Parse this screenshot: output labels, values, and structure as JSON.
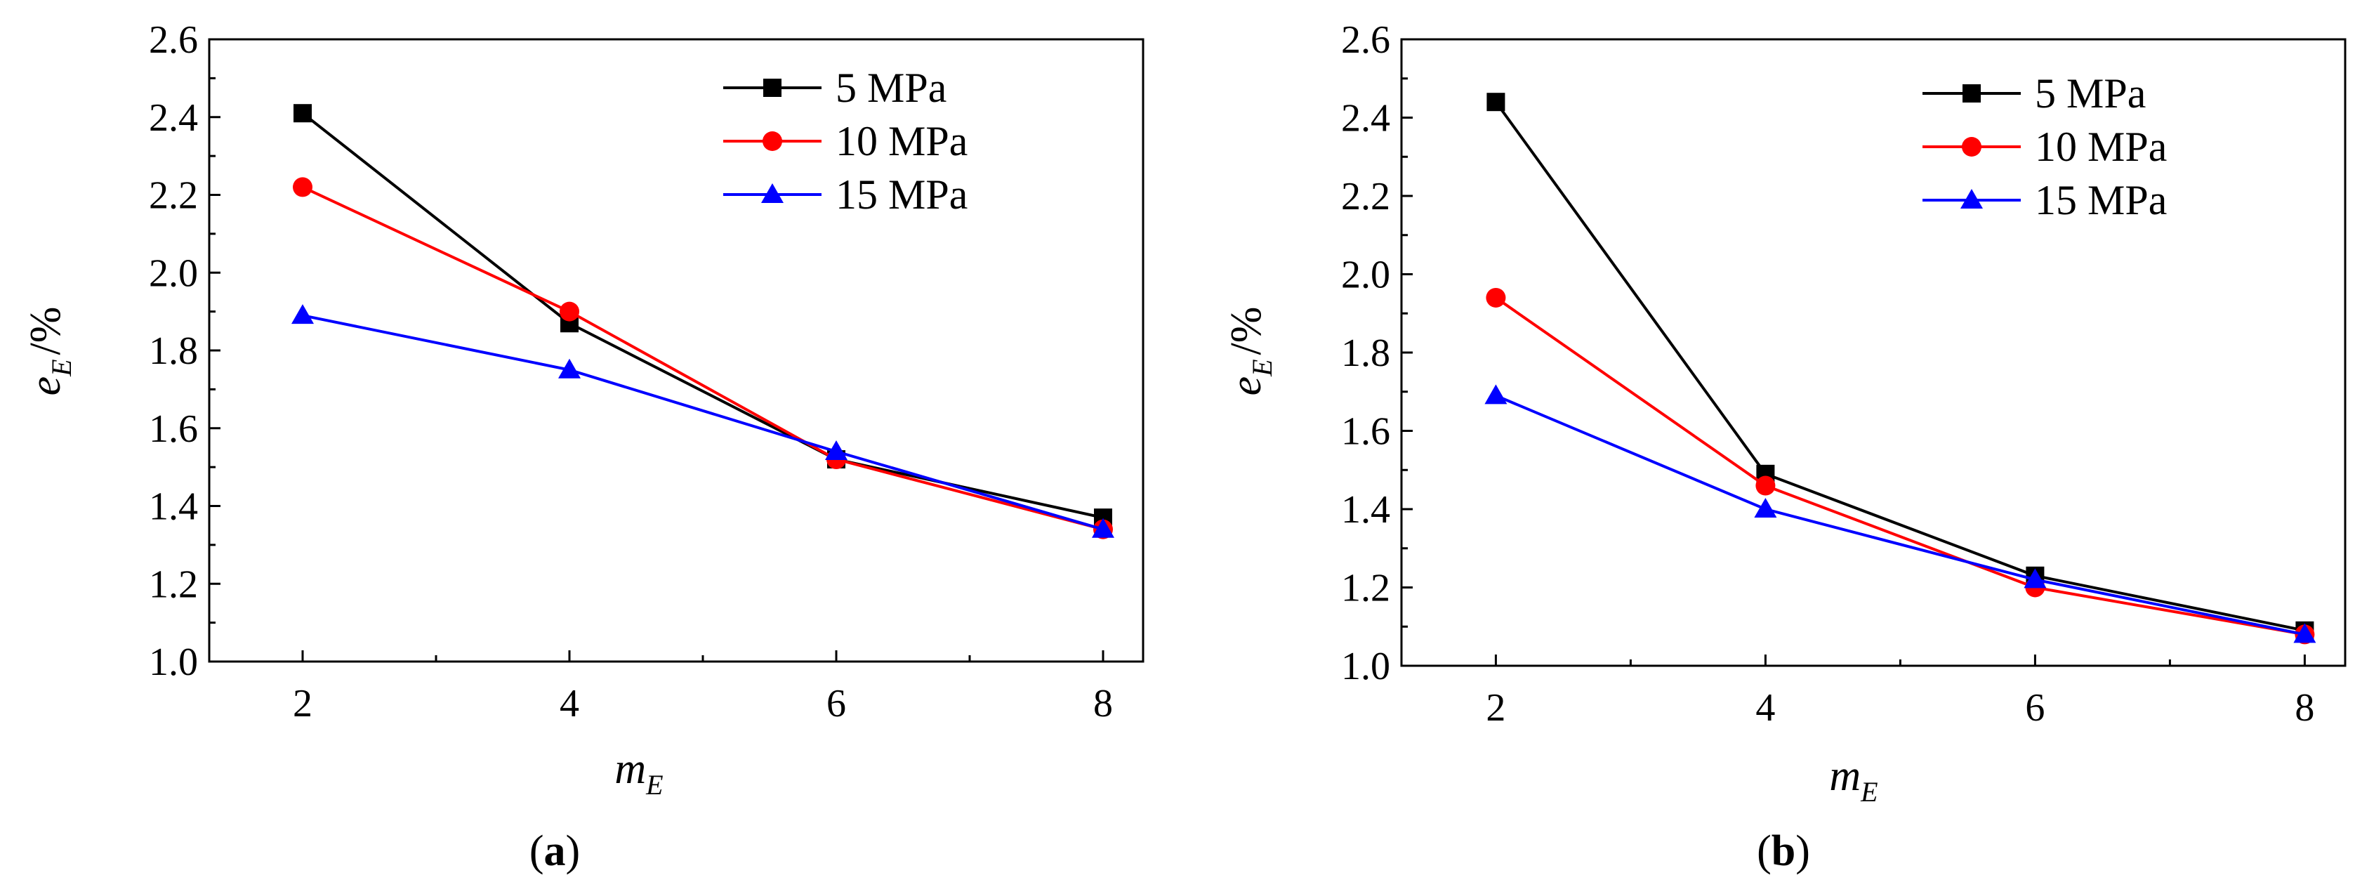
{
  "chart_data": [
    {
      "type": "line",
      "panel_label": "a",
      "xlabel_main": "m",
      "xlabel_sub": "E",
      "ylabel_main": "e",
      "ylabel_sub": "E",
      "ylabel_unit": "/%",
      "x": [
        2,
        4,
        6,
        8
      ],
      "xlim": [
        1.3,
        8.3
      ],
      "ylim": [
        1.0,
        2.6
      ],
      "xticks": [
        2,
        4,
        6,
        8
      ],
      "yticks": [
        "1.0",
        "1.2",
        "1.4",
        "1.6",
        "1.8",
        "2.0",
        "2.2",
        "2.4",
        "2.6"
      ],
      "legend_position": "top-right",
      "series": [
        {
          "name": "5 MPa",
          "color": "#000000",
          "marker": "square",
          "values": [
            2.41,
            1.87,
            1.52,
            1.37
          ]
        },
        {
          "name": "10 MPa",
          "color": "#ff0000",
          "marker": "circle",
          "values": [
            2.22,
            1.9,
            1.52,
            1.34
          ]
        },
        {
          "name": "15 MPa",
          "color": "#0000ff",
          "marker": "triangle",
          "values": [
            1.89,
            1.75,
            1.54,
            1.34
          ]
        }
      ]
    },
    {
      "type": "line",
      "panel_label": "b",
      "xlabel_main": "m",
      "xlabel_sub": "E",
      "ylabel_main": "e",
      "ylabel_sub": "E",
      "ylabel_unit": "/%",
      "x": [
        2,
        4,
        6,
        8
      ],
      "xlim": [
        1.3,
        8.3
      ],
      "ylim": [
        1.0,
        2.6
      ],
      "xticks": [
        2,
        4,
        6,
        8
      ],
      "yticks": [
        "1.0",
        "1.2",
        "1.4",
        "1.6",
        "1.8",
        "2.0",
        "2.2",
        "2.4",
        "2.6"
      ],
      "legend_position": "top-right",
      "series": [
        {
          "name": "5 MPa",
          "color": "#000000",
          "marker": "square",
          "values": [
            2.44,
            1.49,
            1.23,
            1.09
          ]
        },
        {
          "name": "10 MPa",
          "color": "#ff0000",
          "marker": "circle",
          "values": [
            1.94,
            1.46,
            1.2,
            1.08
          ]
        },
        {
          "name": "15 MPa",
          "color": "#0000ff",
          "marker": "triangle",
          "values": [
            1.69,
            1.4,
            1.22,
            1.08
          ]
        }
      ]
    }
  ]
}
